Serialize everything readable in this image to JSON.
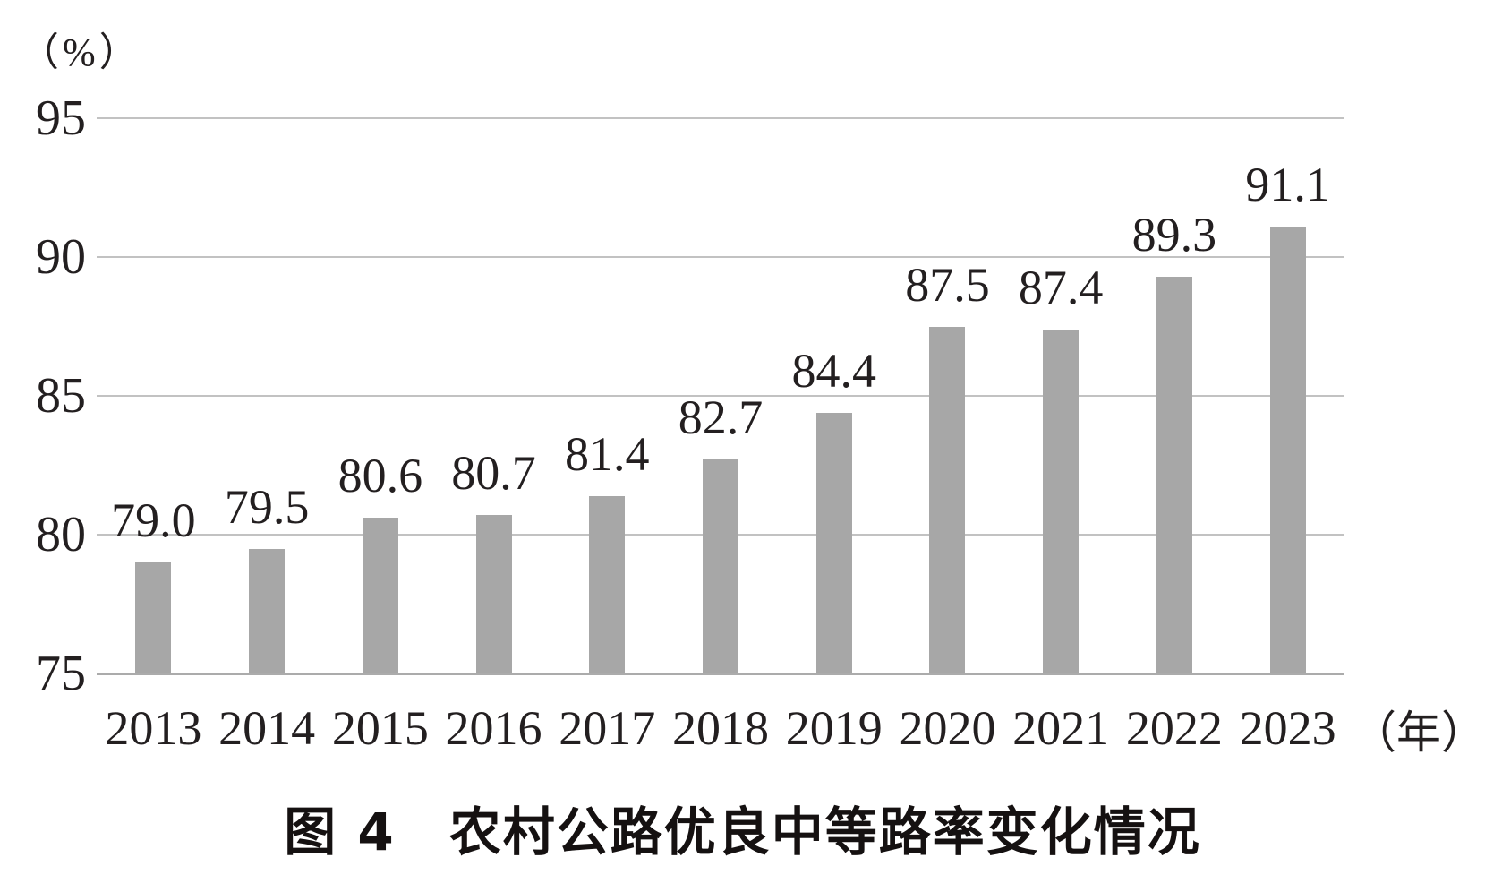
{
  "chart_data": {
    "type": "bar",
    "title": "图 4　农村公路优良中等路率变化情况",
    "y_unit_label": "（%）",
    "x_unit_label": "（年）",
    "categories": [
      "2013",
      "2014",
      "2015",
      "2016",
      "2017",
      "2018",
      "2019",
      "2020",
      "2021",
      "2022",
      "2023"
    ],
    "values": [
      79.0,
      79.5,
      80.6,
      80.7,
      81.4,
      82.7,
      84.4,
      87.5,
      87.4,
      89.3,
      91.1
    ],
    "value_labels": [
      "79.0",
      "79.5",
      "80.6",
      "80.7",
      "81.4",
      "82.7",
      "84.4",
      "87.5",
      "87.4",
      "89.3",
      "91.1"
    ],
    "ylim": [
      75,
      95
    ],
    "yticks": [
      "95",
      "90",
      "85",
      "80",
      "75"
    ],
    "grid": "horizontal gridlines at each y tick; no vertical axis line",
    "legend": "none",
    "bar_color": "#a7a7a7",
    "gridline_color": "#c2c2c2",
    "baseline_color": "#ababab",
    "text_color": "#231f20"
  }
}
